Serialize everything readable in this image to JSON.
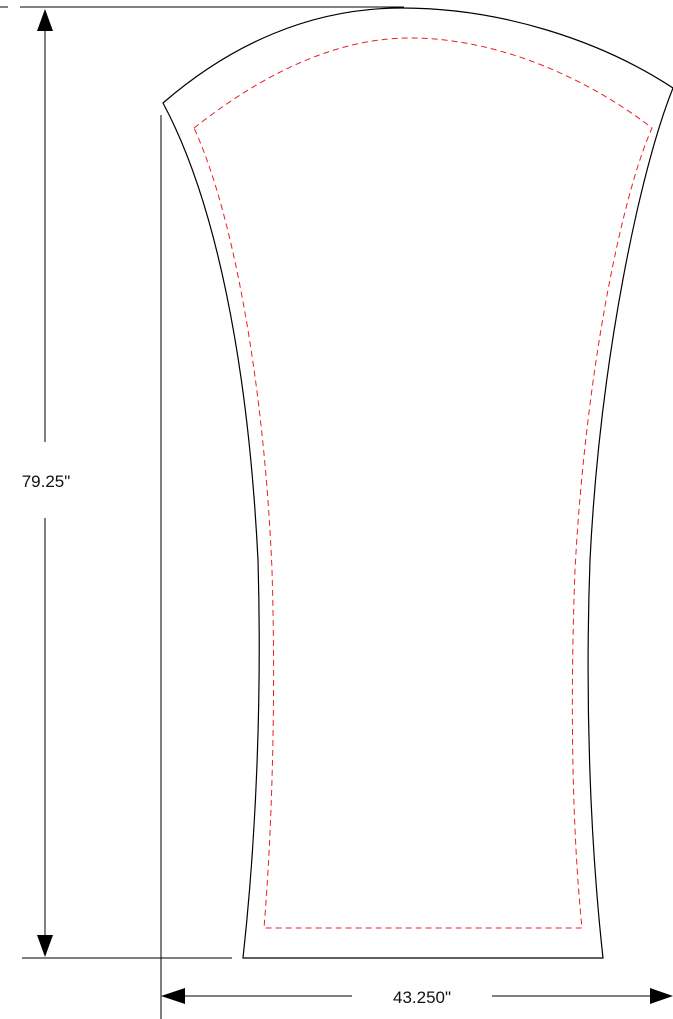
{
  "dimensions": {
    "height_label": "79.25\"",
    "width_label": "43.250\""
  },
  "colors": {
    "outline": "#000000",
    "safe_line": "#e8202a",
    "background": "#ffffff"
  }
}
